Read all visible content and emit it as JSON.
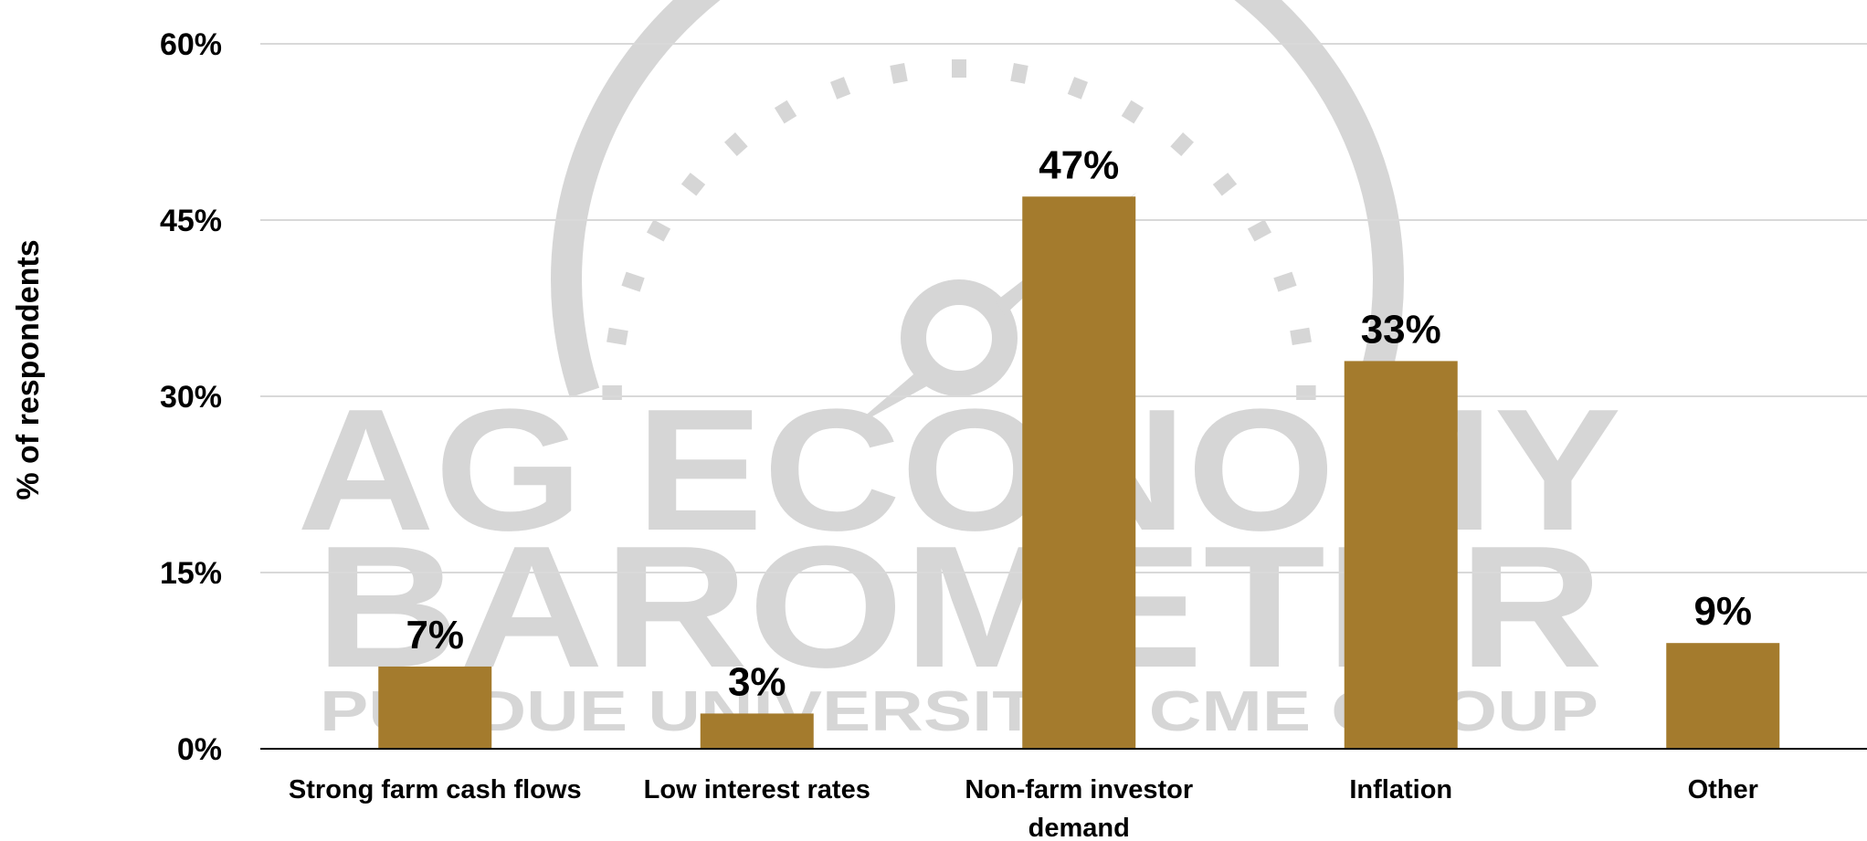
{
  "watermark": {
    "line1": "AG ECONOMY",
    "line2": "BAROMETER",
    "line3": "PURDUE UNIVERSITY  ·  CME GROUP"
  },
  "colors": {
    "bar": "#A47B2D",
    "grid": "#d9d9d9",
    "axis": "#000000",
    "watermark": "#d6d6d6"
  },
  "chart_data": {
    "type": "bar",
    "categories": [
      "Strong farm cash flows",
      "Low interest rates",
      "Non-farm investor demand",
      "Inflation",
      "Other"
    ],
    "category_lines": [
      [
        "Strong farm cash flows"
      ],
      [
        "Low interest rates"
      ],
      [
        "Non-farm investor",
        "demand"
      ],
      [
        "Inflation"
      ],
      [
        "Other"
      ]
    ],
    "values": [
      7,
      3,
      47,
      33,
      9
    ],
    "value_labels": [
      "7%",
      "3%",
      "47%",
      "33%",
      "9%"
    ],
    "ylabel": "% of respondents",
    "ylim": [
      0,
      60
    ],
    "yticks": [
      0,
      15,
      30,
      45,
      60
    ],
    "ytick_labels": [
      "0%",
      "15%",
      "30%",
      "45%",
      "60%"
    ],
    "grid": true,
    "legend": "none"
  }
}
